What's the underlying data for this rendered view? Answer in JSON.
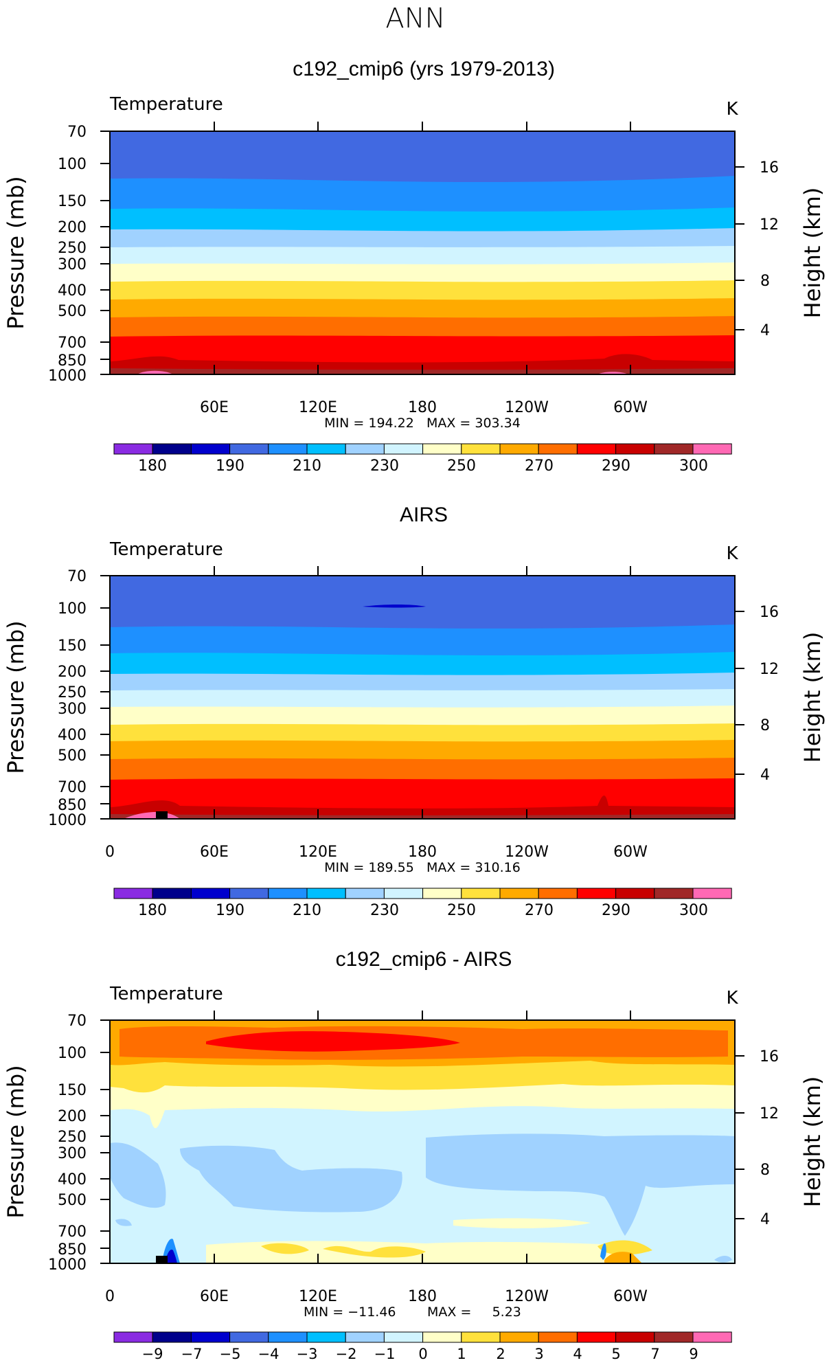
{
  "figure_title": "ANN",
  "colors": {
    "abs_palette": [
      "#8a2be2",
      "#00008b",
      "#0000cd",
      "#4169e1",
      "#1e90ff",
      "#00bfff",
      "#a0d2ff",
      "#d1f4ff",
      "#ffffc8",
      "#ffe13c",
      "#ffaa00",
      "#ff6e00",
      "#ff0000",
      "#c80000",
      "#a02828",
      "#ff69b4"
    ],
    "diff_palette": [
      "#8a2be2",
      "#00008b",
      "#0000cd",
      "#4169e1",
      "#1e90ff",
      "#00bfff",
      "#a0d2ff",
      "#d1f4ff",
      "#ffffc8",
      "#ffe13c",
      "#ffaa00",
      "#ff6e00",
      "#ff0000",
      "#c80000",
      "#a02828",
      "#ff69b4"
    ]
  },
  "chart_data": [
    {
      "type": "heatmap",
      "title": "c192_cmip6 (yrs 1979-2013)",
      "variable_label": "Temperature",
      "units": "K",
      "ylabel": "Pressure (mb)",
      "y2label": "Height (km)",
      "yticks": [
        "70",
        "100",
        "150",
        "200",
        "250",
        "300",
        "400",
        "500",
        "700",
        "850",
        "1000"
      ],
      "y2ticks": [
        "16",
        "12",
        "8",
        "4"
      ],
      "xticks": [
        "60E",
        "120E",
        "180",
        "120W",
        "60W"
      ],
      "stats": "MIN = 194.22   MAX = 303.34",
      "colorbar_labels": [
        "180",
        "190",
        "210",
        "230",
        "250",
        "270",
        "290",
        "300"
      ],
      "levels": [
        180,
        185,
        190,
        200,
        210,
        220,
        230,
        240,
        250,
        260,
        270,
        280,
        290,
        295,
        300
      ],
      "layers_color_index": [
        3,
        4,
        5,
        6,
        7,
        8,
        9,
        10,
        11,
        12,
        13,
        14,
        15
      ],
      "ylim": [
        1000,
        70
      ]
    },
    {
      "type": "heatmap",
      "title": "AIRS",
      "variable_label": "Temperature",
      "units": "K",
      "ylabel": "Pressure (mb)",
      "y2label": "Height (km)",
      "yticks": [
        "70",
        "100",
        "150",
        "200",
        "250",
        "300",
        "400",
        "500",
        "700",
        "850",
        "1000"
      ],
      "y2ticks": [
        "16",
        "12",
        "8",
        "4"
      ],
      "xticks": [
        "0",
        "60E",
        "120E",
        "180",
        "120W",
        "60W"
      ],
      "stats": "MIN = 189.55   MAX = 310.16",
      "colorbar_labels": [
        "180",
        "190",
        "210",
        "230",
        "250",
        "270",
        "290",
        "300"
      ],
      "levels": [
        180,
        185,
        190,
        200,
        210,
        220,
        230,
        240,
        250,
        260,
        270,
        280,
        290,
        295,
        300
      ],
      "layers_color_index": [
        3,
        4,
        5,
        6,
        7,
        8,
        9,
        10,
        11,
        12,
        13,
        14,
        15
      ],
      "ylim": [
        1000,
        70
      ]
    },
    {
      "type": "heatmap",
      "title": "c192_cmip6 - AIRS",
      "variable_label": "Temperature",
      "units": "K",
      "ylabel": "Pressure (mb)",
      "y2label": "Height (km)",
      "yticks": [
        "70",
        "100",
        "150",
        "200",
        "250",
        "300",
        "400",
        "500",
        "700",
        "850",
        "1000"
      ],
      "y2ticks": [
        "16",
        "12",
        "8",
        "4"
      ],
      "xticks": [
        "0",
        "60E",
        "120E",
        "180",
        "120W",
        "60W"
      ],
      "stats_min": "MIN = −11.46",
      "stats_max": "MAX =     5.23",
      "colorbar_labels": [
        "−9",
        "−7",
        "−5",
        "−4",
        "−3",
        "−2",
        "−1",
        "0",
        "1",
        "2",
        "3",
        "4",
        "5",
        "7",
        "9"
      ],
      "levels": [
        -9,
        -7,
        -5,
        -4,
        -3,
        -2,
        -1,
        0,
        1,
        2,
        3,
        4,
        5,
        7,
        9
      ],
      "ylim": [
        1000,
        70
      ]
    }
  ]
}
